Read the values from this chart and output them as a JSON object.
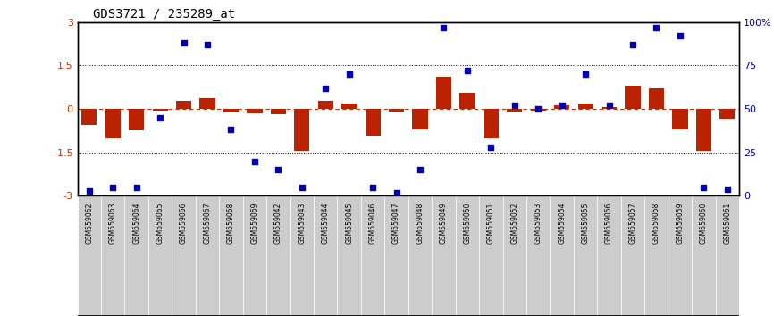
{
  "title": "GDS3721 / 235289_at",
  "samples": [
    "GSM559062",
    "GSM559063",
    "GSM559064",
    "GSM559065",
    "GSM559066",
    "GSM559067",
    "GSM559068",
    "GSM559069",
    "GSM559042",
    "GSM559043",
    "GSM559044",
    "GSM559045",
    "GSM559046",
    "GSM559047",
    "GSM559048",
    "GSM559049",
    "GSM559050",
    "GSM559051",
    "GSM559052",
    "GSM559053",
    "GSM559054",
    "GSM559055",
    "GSM559056",
    "GSM559057",
    "GSM559058",
    "GSM559059",
    "GSM559060",
    "GSM559061"
  ],
  "transformed_count": [
    -0.55,
    -1.0,
    -0.75,
    -0.05,
    0.28,
    0.38,
    -0.12,
    -0.15,
    -0.18,
    -1.45,
    0.28,
    0.18,
    -0.92,
    -0.1,
    -0.72,
    1.1,
    0.55,
    -1.0,
    -0.08,
    -0.05,
    0.12,
    0.18,
    0.08,
    0.82,
    0.72,
    -0.72,
    -1.45,
    -0.35
  ],
  "percentile_rank": [
    3,
    5,
    5,
    45,
    88,
    87,
    38,
    20,
    15,
    5,
    62,
    70,
    5,
    2,
    15,
    97,
    72,
    28,
    52,
    50,
    52,
    70,
    52,
    87,
    97,
    92,
    5,
    4
  ],
  "pcr_count": 9,
  "ppr_count": 19,
  "bar_color": "#bb2200",
  "dot_color": "#0000bb",
  "pcr_color": "#cceecc",
  "ppr_color": "#44cc44",
  "label_bg_color": "#cccccc",
  "ylim": [
    -3,
    3
  ],
  "right_ylim": [
    0,
    100
  ],
  "yticks_left": [
    -3,
    -1.5,
    0,
    1.5,
    3
  ],
  "yticks_right": [
    0,
    25,
    50,
    75,
    100
  ],
  "dotted_hlines": [
    -1.5,
    1.5
  ],
  "zero_hline_color": "#cc3300"
}
